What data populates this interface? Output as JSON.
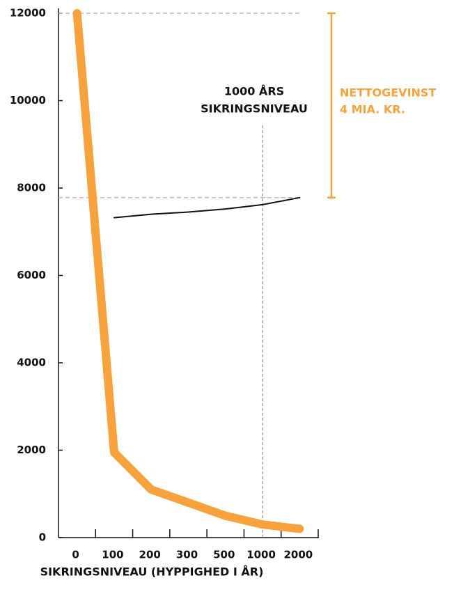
{
  "chart_data": {
    "type": "line",
    "x_label": "SIKRINGSNIVEAU (HYPPIGHED I ÅR)",
    "categories": [
      "0",
      "100",
      "200",
      "300",
      "500",
      "1000",
      "2000"
    ],
    "series": [
      {
        "color": "#f7a23c",
        "values": [
          12000,
          1950,
          1100,
          800,
          500,
          300,
          200
        ]
      },
      {
        "color": "#111111",
        "values": [
          null,
          7320,
          7400,
          7450,
          7520,
          7620,
          7780
        ]
      }
    ],
    "ylim": [
      0,
      12000
    ],
    "yticks": [
      0,
      2000,
      4000,
      6000,
      8000,
      10000,
      12000
    ],
    "annotations": [
      {
        "lines": [
          "1000 ÅRS",
          "SIKRINGSNIVEAU"
        ],
        "category": "1000",
        "color": "#111111"
      },
      {
        "lines": [
          "NETTOGEVINST",
          "4 MIA. KR."
        ],
        "color": "#f7a23c"
      }
    ]
  }
}
